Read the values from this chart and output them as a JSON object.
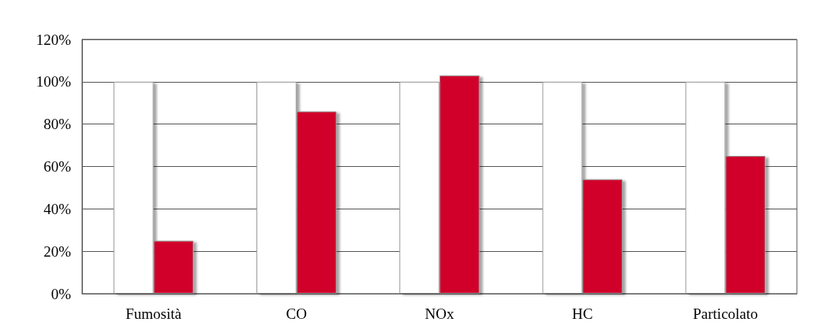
{
  "chart_data": {
    "type": "bar",
    "categories": [
      "Fumosità",
      "CO",
      "NOx",
      "HC",
      "Particolato"
    ],
    "series": [
      {
        "color": "#ffffff",
        "values": [
          100,
          100,
          100,
          100,
          100
        ]
      },
      {
        "color": "#d0022b",
        "values": [
          25,
          86,
          103,
          54,
          65
        ]
      }
    ],
    "ylim": [
      0,
      120
    ],
    "yticks": [
      {
        "value": 0,
        "label": "0%"
      },
      {
        "value": 20,
        "label": "20%"
      },
      {
        "value": 40,
        "label": "40%"
      },
      {
        "value": 60,
        "label": "60%"
      },
      {
        "value": 80,
        "label": "80%"
      },
      {
        "value": 100,
        "label": "100%"
      },
      {
        "value": 120,
        "label": "120%"
      }
    ],
    "grid": "y"
  }
}
